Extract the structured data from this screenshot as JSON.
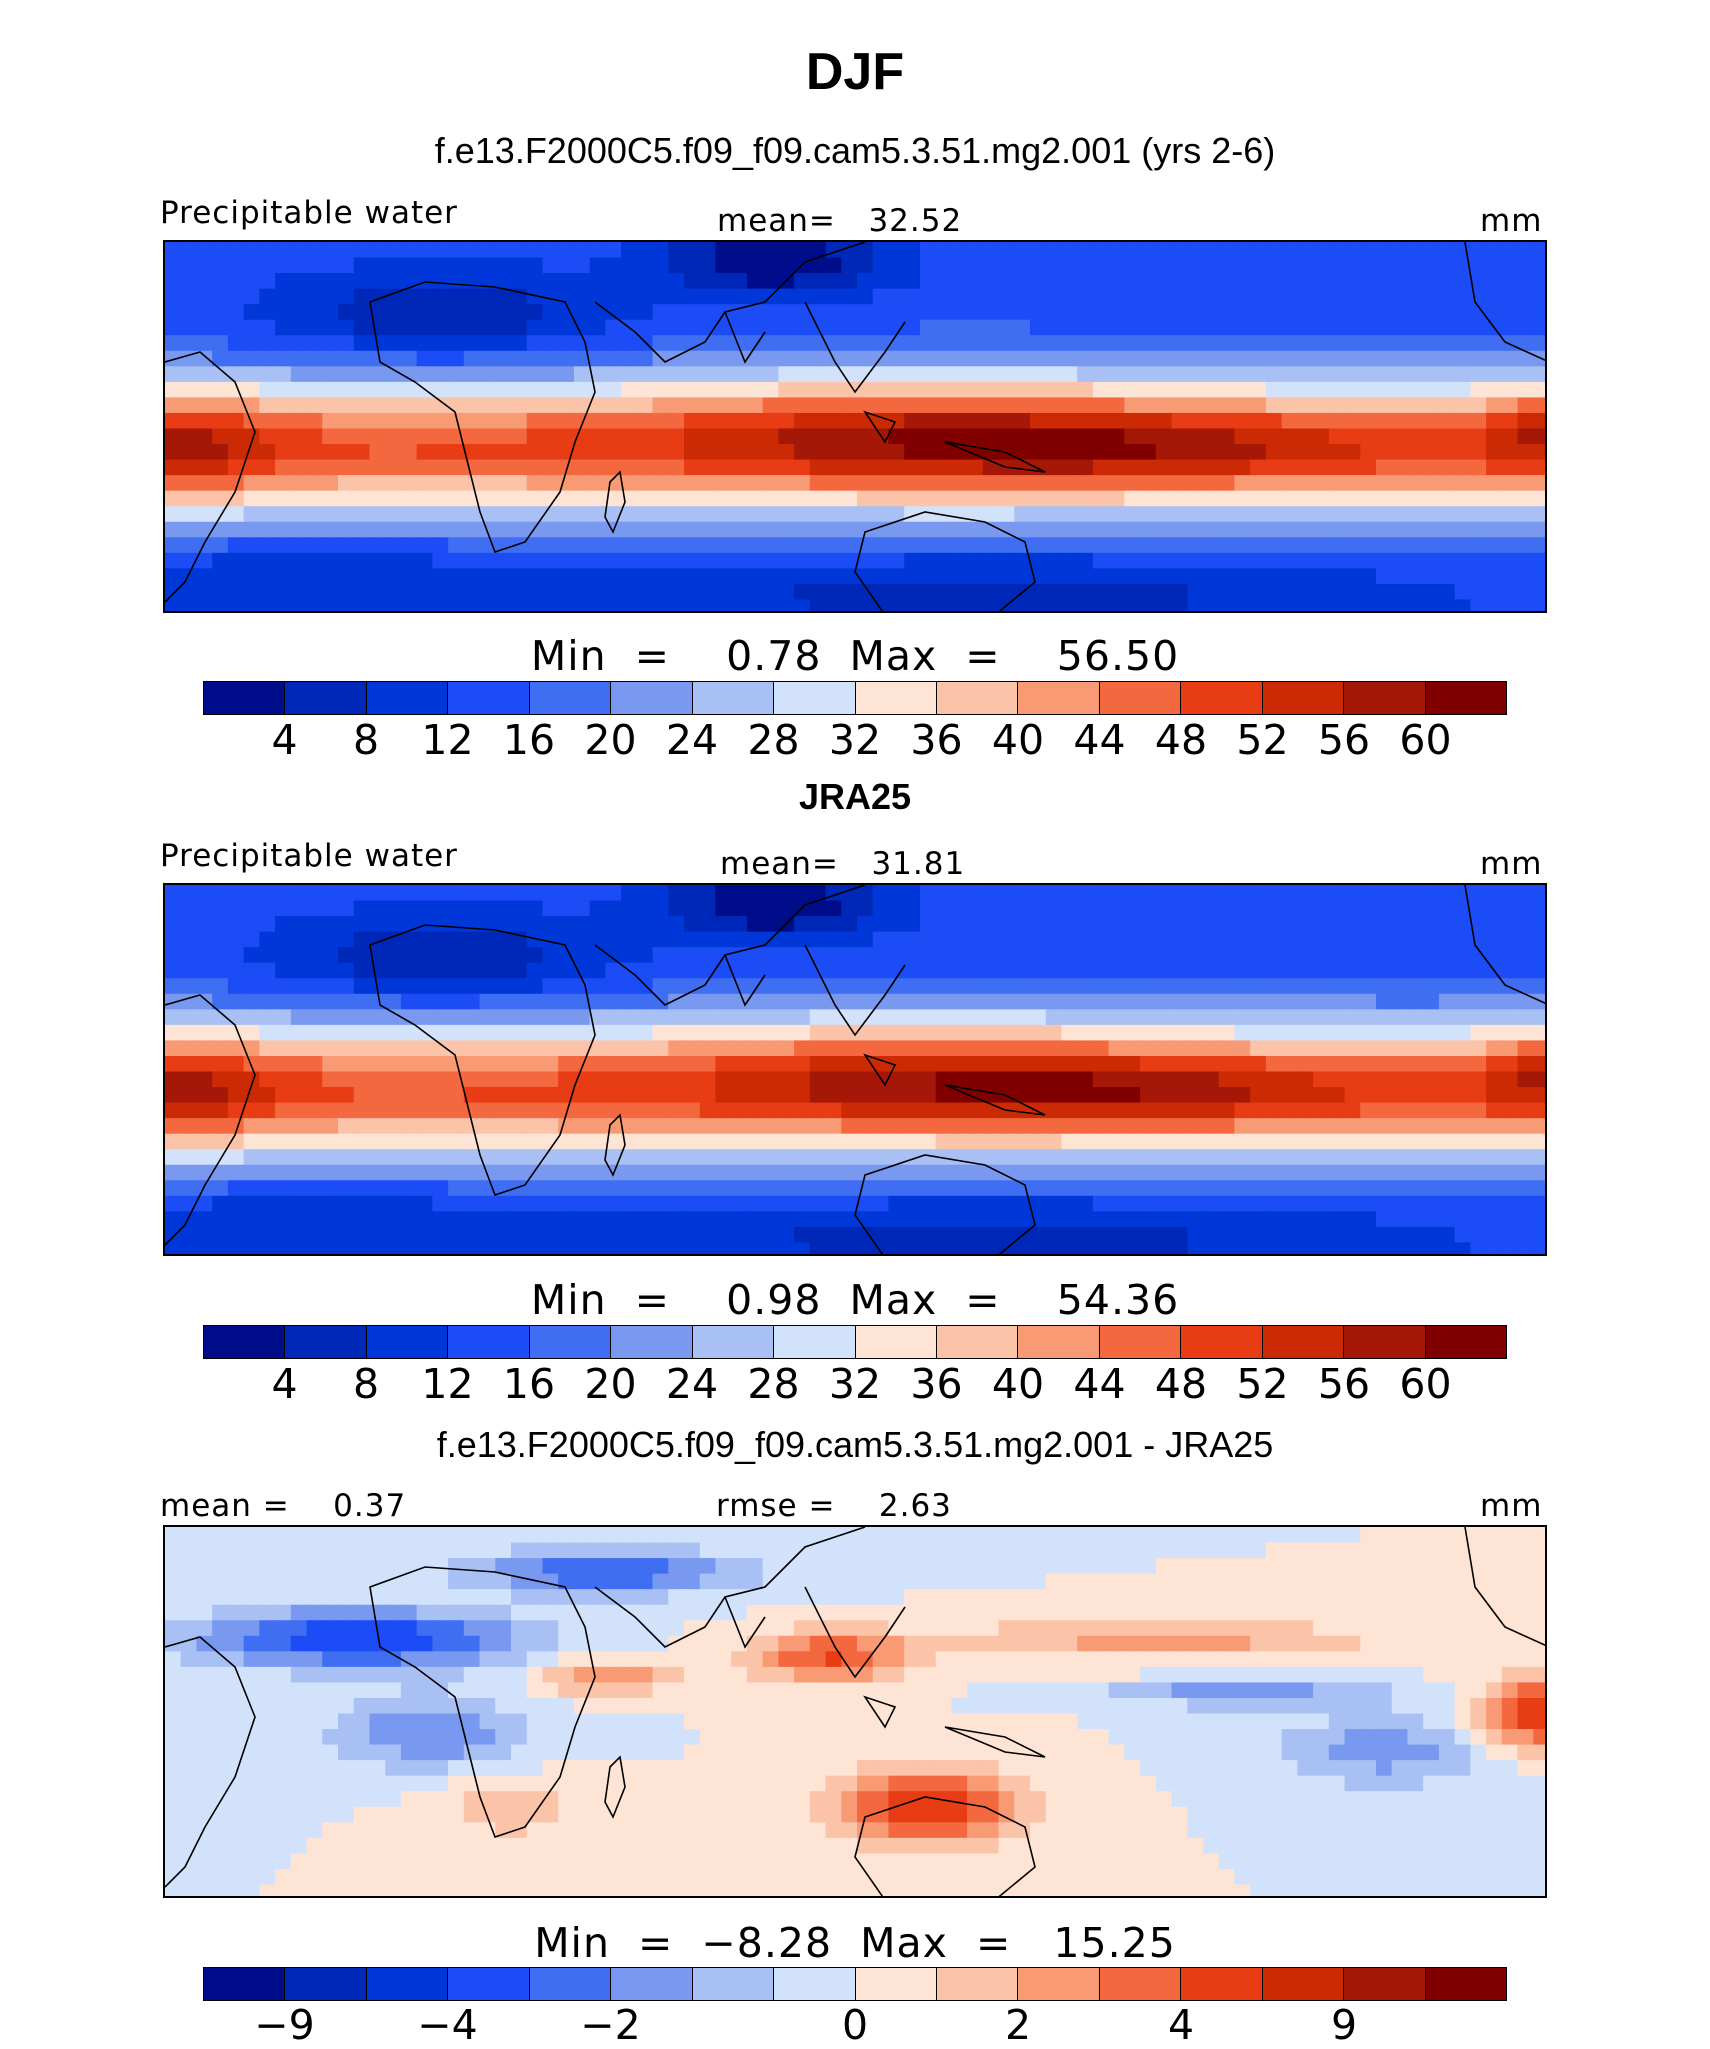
{
  "title": "DJF",
  "colors": {
    "scale": [
      "#000d8a",
      "#0028b8",
      "#0037d8",
      "#1b4cf5",
      "#3f6ef2",
      "#7999f0",
      "#a9c0f5",
      "#d2e2fb",
      "#fde4d4",
      "#fbc3a8",
      "#f89a74",
      "#f3683f",
      "#e83c14",
      "#cc2a05",
      "#a51808",
      "#800000"
    ],
    "land_outline": "#000000"
  },
  "panels": [
    {
      "title": "f.e13.F2000C5.f09_f09.cam5.3.51.mg2.001 (yrs 2-6)",
      "left_label": "Precipitable water",
      "center_label": "mean=   32.52",
      "units": "mm",
      "min_max": "Min  =    0.78  Max  =    56.50",
      "colorbar_ticks": [
        "4",
        "8",
        "12",
        "16",
        "20",
        "24",
        "28",
        "32",
        "36",
        "40",
        "44",
        "48",
        "52",
        "56",
        "60"
      ],
      "field": {
        "kind": "model",
        "min": 0.78,
        "max": 56.5,
        "mean": 32.52,
        "units": "mm"
      }
    },
    {
      "title": "JRA25",
      "left_label": "Precipitable water",
      "center_label": "mean=   31.81",
      "units": "mm",
      "min_max": "Min  =    0.98  Max  =    54.36",
      "colorbar_ticks": [
        "4",
        "8",
        "12",
        "16",
        "20",
        "24",
        "28",
        "32",
        "36",
        "40",
        "44",
        "48",
        "52",
        "56",
        "60"
      ],
      "field": {
        "kind": "obs",
        "min": 0.98,
        "max": 54.36,
        "mean": 31.81,
        "units": "mm"
      }
    },
    {
      "title": "f.e13.F2000C5.f09_f09.cam5.3.51.mg2.001 - JRA25",
      "left_label": "mean =    0.37",
      "center_label": "rmse =    2.63",
      "units": "mm",
      "min_max": "Min  =  −8.28  Max  =   15.25",
      "colorbar_ticks": [
        "−9",
        "−4",
        "−2",
        "0",
        "2",
        "4",
        "9"
      ],
      "field": {
        "kind": "diff",
        "min": -8.28,
        "max": 15.25,
        "mean": 0.37,
        "rmse": 2.63,
        "units": "mm"
      }
    }
  ]
}
